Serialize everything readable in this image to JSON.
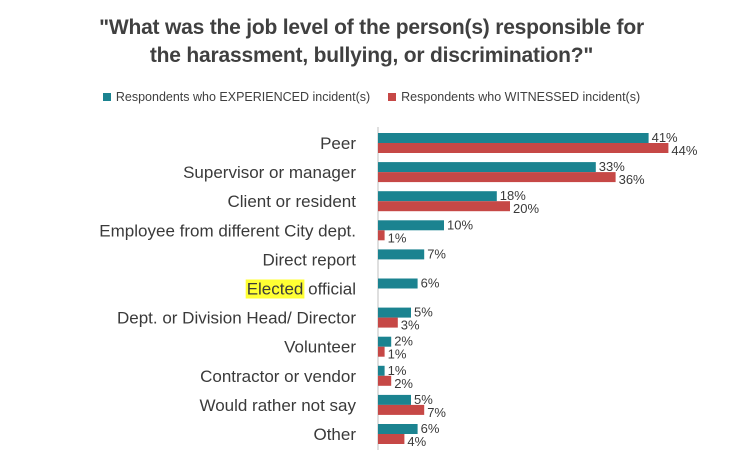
{
  "chart_data": {
    "type": "bar",
    "orientation": "horizontal",
    "title_lines": [
      "\"What was the job level of the person(s) responsible for",
      "the harassment, bullying, or discrimination?\""
    ],
    "categories": [
      "Peer",
      "Supervisor or manager",
      "Client or resident",
      "Employee from different City dept.",
      "Direct report",
      "Elected official",
      "Dept. or Division Head/ Director",
      "Volunteer",
      "Contractor or vendor",
      "Would rather not say",
      "Other"
    ],
    "highlighted_word": {
      "category_index": 5,
      "word": "Elected",
      "rest": " official"
    },
    "series": [
      {
        "name": "Respondents who EXPERIENCED incident(s)",
        "color": "#1b8390",
        "values": [
          41,
          33,
          18,
          10,
          7,
          6,
          5,
          2,
          1,
          5,
          6
        ],
        "labels": [
          "41%",
          "33%",
          "18%",
          "10%",
          "7%",
          "6%",
          "5%",
          "2%",
          "1%",
          "5%",
          "6%"
        ]
      },
      {
        "name": "Respondents who WITNESSED incident(s)",
        "color": "#c64846",
        "values": [
          44,
          36,
          20,
          1,
          null,
          null,
          3,
          1,
          2,
          7,
          4
        ],
        "labels": [
          "44%",
          "36%",
          "20%",
          "1%",
          "",
          "",
          "3%",
          "1%",
          "2%",
          "7%",
          "4%"
        ]
      }
    ],
    "xlim": [
      0,
      50
    ],
    "grid": false,
    "legend_position": "top"
  }
}
